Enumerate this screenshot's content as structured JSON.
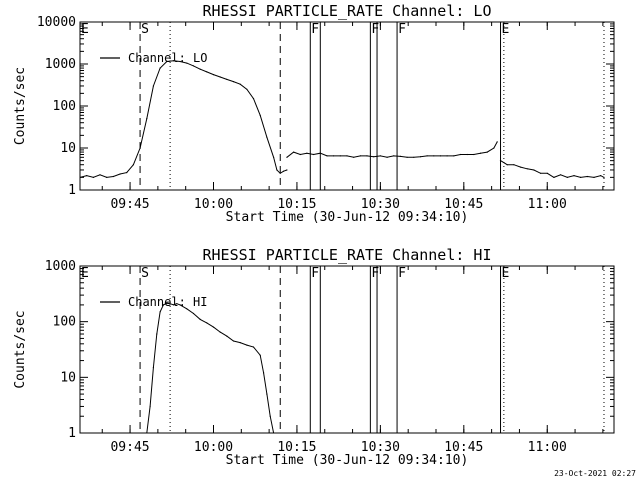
{
  "chart_data": [
    {
      "type": "line",
      "title": "RHESSI PARTICLE_RATE Channel: LO",
      "xlabel": "Start Time (30-Jun-12 09:34:10)",
      "ylabel": "Counts/sec",
      "y_scale": "log",
      "ylim": [
        1,
        10000
      ],
      "y_ticks": [
        1,
        10,
        100,
        1000,
        10000
      ],
      "y_tick_labels": [
        "1",
        "10",
        "100",
        "1000",
        "10000"
      ],
      "xlim": [
        9.6,
        11.2
      ],
      "x_ticks": [
        9.75,
        10.0,
        10.25,
        10.5,
        10.75,
        11.0
      ],
      "x_tick_labels": [
        "09:45",
        "10:00",
        "10:15",
        "10:30",
        "10:45",
        "11:00"
      ],
      "legend": "Channel: LO",
      "legend_position": "top-left",
      "markers": [
        {
          "label": "E",
          "x": 9.6,
          "style": "label"
        },
        {
          "label": "S",
          "x": 9.78,
          "style": "dashed"
        },
        {
          "label": "",
          "x": 9.87,
          "style": "dotted"
        },
        {
          "label": "",
          "x": 10.2,
          "style": "dashed"
        },
        {
          "label": "F",
          "x": 10.29,
          "style": "solid"
        },
        {
          "label": "",
          "x": 10.32,
          "style": "solid"
        },
        {
          "label": "F",
          "x": 10.47,
          "style": "solid"
        },
        {
          "label": "",
          "x": 10.49,
          "style": "solid"
        },
        {
          "label": "F",
          "x": 10.55,
          "style": "solid"
        },
        {
          "label": "E",
          "x": 10.86,
          "style": "solid"
        },
        {
          "label": "",
          "x": 10.87,
          "style": "dotted"
        },
        {
          "label": "",
          "x": 11.17,
          "style": "dotted"
        }
      ],
      "series": [
        {
          "name": "Channel: LO",
          "segments": [
            {
              "x": [
                9.6,
                9.62,
                9.64,
                9.66,
                9.68,
                9.7,
                9.72,
                9.74,
                9.76,
                9.78,
                9.8,
                9.82,
                9.84,
                9.86,
                9.88,
                9.9,
                9.92,
                9.94,
                9.96,
                9.98,
                10.0,
                10.02,
                10.04,
                10.06,
                10.08,
                10.1,
                10.12,
                10.14,
                10.16,
                10.18,
                10.19,
                10.2,
                10.21,
                10.22
              ],
              "y": [
                2,
                2.2,
                2,
                2.3,
                2,
                2.1,
                2.4,
                2.6,
                4,
                10,
                50,
                300,
                800,
                1150,
                1200,
                1150,
                1050,
                900,
                750,
                650,
                560,
                490,
                430,
                380,
                330,
                250,
                150,
                60,
                18,
                6,
                3,
                2.5,
                2.8,
                3
              ]
            },
            {
              "x": [
                10.22,
                10.24,
                10.26,
                10.28,
                10.3,
                10.32,
                10.34,
                10.36,
                10.38,
                10.4,
                10.42,
                10.44,
                10.46,
                10.48,
                10.5,
                10.52,
                10.54,
                10.56,
                10.58,
                10.6,
                10.62,
                10.64,
                10.66,
                10.68,
                10.7,
                10.72,
                10.74,
                10.76,
                10.78,
                10.8,
                10.82,
                10.84,
                10.85
              ],
              "y": [
                6,
                8,
                7,
                7.5,
                7,
                7.5,
                6.5,
                6.5,
                6.5,
                6.5,
                6,
                6.5,
                6.5,
                6.2,
                6.5,
                6,
                6.5,
                6.3,
                6,
                6,
                6.2,
                6.5,
                6.5,
                6.5,
                6.5,
                6.5,
                7,
                7,
                7,
                7.5,
                8,
                10,
                14
              ]
            },
            {
              "x": [
                10.86,
                10.88,
                10.9,
                10.92,
                10.94,
                10.96,
                10.98,
                11.0,
                11.02,
                11.04,
                11.06,
                11.08,
                11.1,
                11.12,
                11.14,
                11.16,
                11.17
              ],
              "y": [
                5,
                4,
                4,
                3.5,
                3.2,
                3,
                2.5,
                2.5,
                2,
                2.3,
                2,
                2.2,
                2,
                2.1,
                2,
                2.2,
                2
              ]
            }
          ]
        }
      ]
    },
    {
      "type": "line",
      "title": "RHESSI PARTICLE_RATE Channel: HI",
      "xlabel": "Start Time (30-Jun-12 09:34:10)",
      "ylabel": "Counts/sec",
      "y_scale": "log",
      "ylim": [
        1,
        1000
      ],
      "y_ticks": [
        1,
        10,
        100,
        1000
      ],
      "y_tick_labels": [
        "1",
        "10",
        "100",
        "1000"
      ],
      "xlim": [
        9.6,
        11.2
      ],
      "x_ticks": [
        9.75,
        10.0,
        10.25,
        10.5,
        10.75,
        11.0
      ],
      "x_tick_labels": [
        "09:45",
        "10:00",
        "10:15",
        "10:30",
        "10:45",
        "11:00"
      ],
      "legend": "Channel: HI",
      "legend_position": "top-left",
      "markers": [
        {
          "label": "E",
          "x": 9.6,
          "style": "label"
        },
        {
          "label": "S",
          "x": 9.78,
          "style": "dashed"
        },
        {
          "label": "",
          "x": 9.87,
          "style": "dotted"
        },
        {
          "label": "",
          "x": 10.2,
          "style": "dashed"
        },
        {
          "label": "F",
          "x": 10.29,
          "style": "solid"
        },
        {
          "label": "",
          "x": 10.32,
          "style": "solid"
        },
        {
          "label": "F",
          "x": 10.47,
          "style": "solid"
        },
        {
          "label": "",
          "x": 10.49,
          "style": "solid"
        },
        {
          "label": "F",
          "x": 10.55,
          "style": "solid"
        },
        {
          "label": "E",
          "x": 10.86,
          "style": "solid"
        },
        {
          "label": "",
          "x": 10.87,
          "style": "dotted"
        },
        {
          "label": "",
          "x": 11.17,
          "style": "dotted"
        }
      ],
      "series": [
        {
          "name": "Channel: HI",
          "segments": [
            {
              "x": [
                9.8,
                9.81,
                9.82,
                9.83,
                9.84,
                9.85,
                9.86,
                9.87,
                9.88,
                9.89,
                9.9,
                9.92,
                9.94,
                9.96,
                9.98,
                10.0,
                10.02,
                10.04,
                10.06,
                10.08,
                10.1,
                10.12,
                10.14,
                10.15,
                10.16,
                10.17,
                10.18
              ],
              "y": [
                1,
                3,
                15,
                60,
                150,
                200,
                215,
                210,
                200,
                210,
                200,
                170,
                140,
                110,
                95,
                80,
                65,
                55,
                45,
                42,
                38,
                35,
                25,
                12,
                5,
                2,
                1
              ]
            }
          ]
        }
      ]
    }
  ],
  "timestamp": "23-Oct-2021 02:27"
}
